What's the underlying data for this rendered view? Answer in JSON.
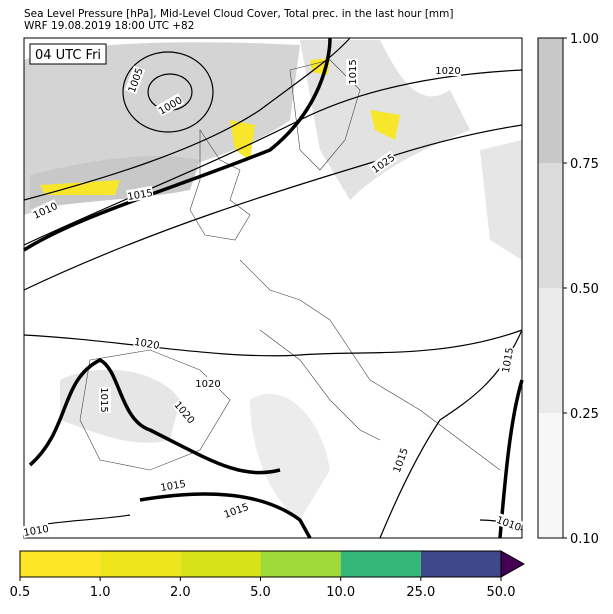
{
  "header": {
    "title_line1": "Sea Level Pressure [hPa], Mid-Level Cloud Cover, Total prec. in the last hour [mm]",
    "title_line2": "WRF 19.08.2019 18:00 UTC +82"
  },
  "map": {
    "time_label": "04 UTC Fri",
    "isobar_labels": [
      "1005",
      "1000",
      "1015",
      "1020",
      "1025",
      "1015",
      "1010",
      "1020",
      "1020",
      "1015",
      "1020",
      "1015",
      "1015",
      "1015",
      "1015",
      "1010",
      "1010"
    ]
  },
  "cloud_colorbar": {
    "ticks": [
      {
        "value": 0.1,
        "label": "0.10"
      },
      {
        "value": 0.25,
        "label": "0.25"
      },
      {
        "value": 0.5,
        "label": "0.50"
      },
      {
        "value": 0.75,
        "label": "0.75"
      },
      {
        "value": 1,
        "label": "1.00"
      }
    ],
    "colors": [
      "#f7f7f7",
      "#ebebeb",
      "#dcdcdc",
      "#c8c8c8"
    ]
  },
  "precip_colorbar": {
    "ticks": [
      {
        "value": 0.5,
        "label": "0.5"
      },
      {
        "value": 1,
        "label": "1.0"
      },
      {
        "value": 2,
        "label": "2.0"
      },
      {
        "value": 5,
        "label": "5.0"
      },
      {
        "value": 10,
        "label": "10.0"
      },
      {
        "value": 25,
        "label": "25.0"
      },
      {
        "value": 50,
        "label": "50.0"
      }
    ],
    "colors": [
      "#fde725",
      "#efe51c",
      "#d8e219",
      "#a0da39",
      "#35b779",
      "#3e4989"
    ],
    "extend_color": "#440154"
  }
}
